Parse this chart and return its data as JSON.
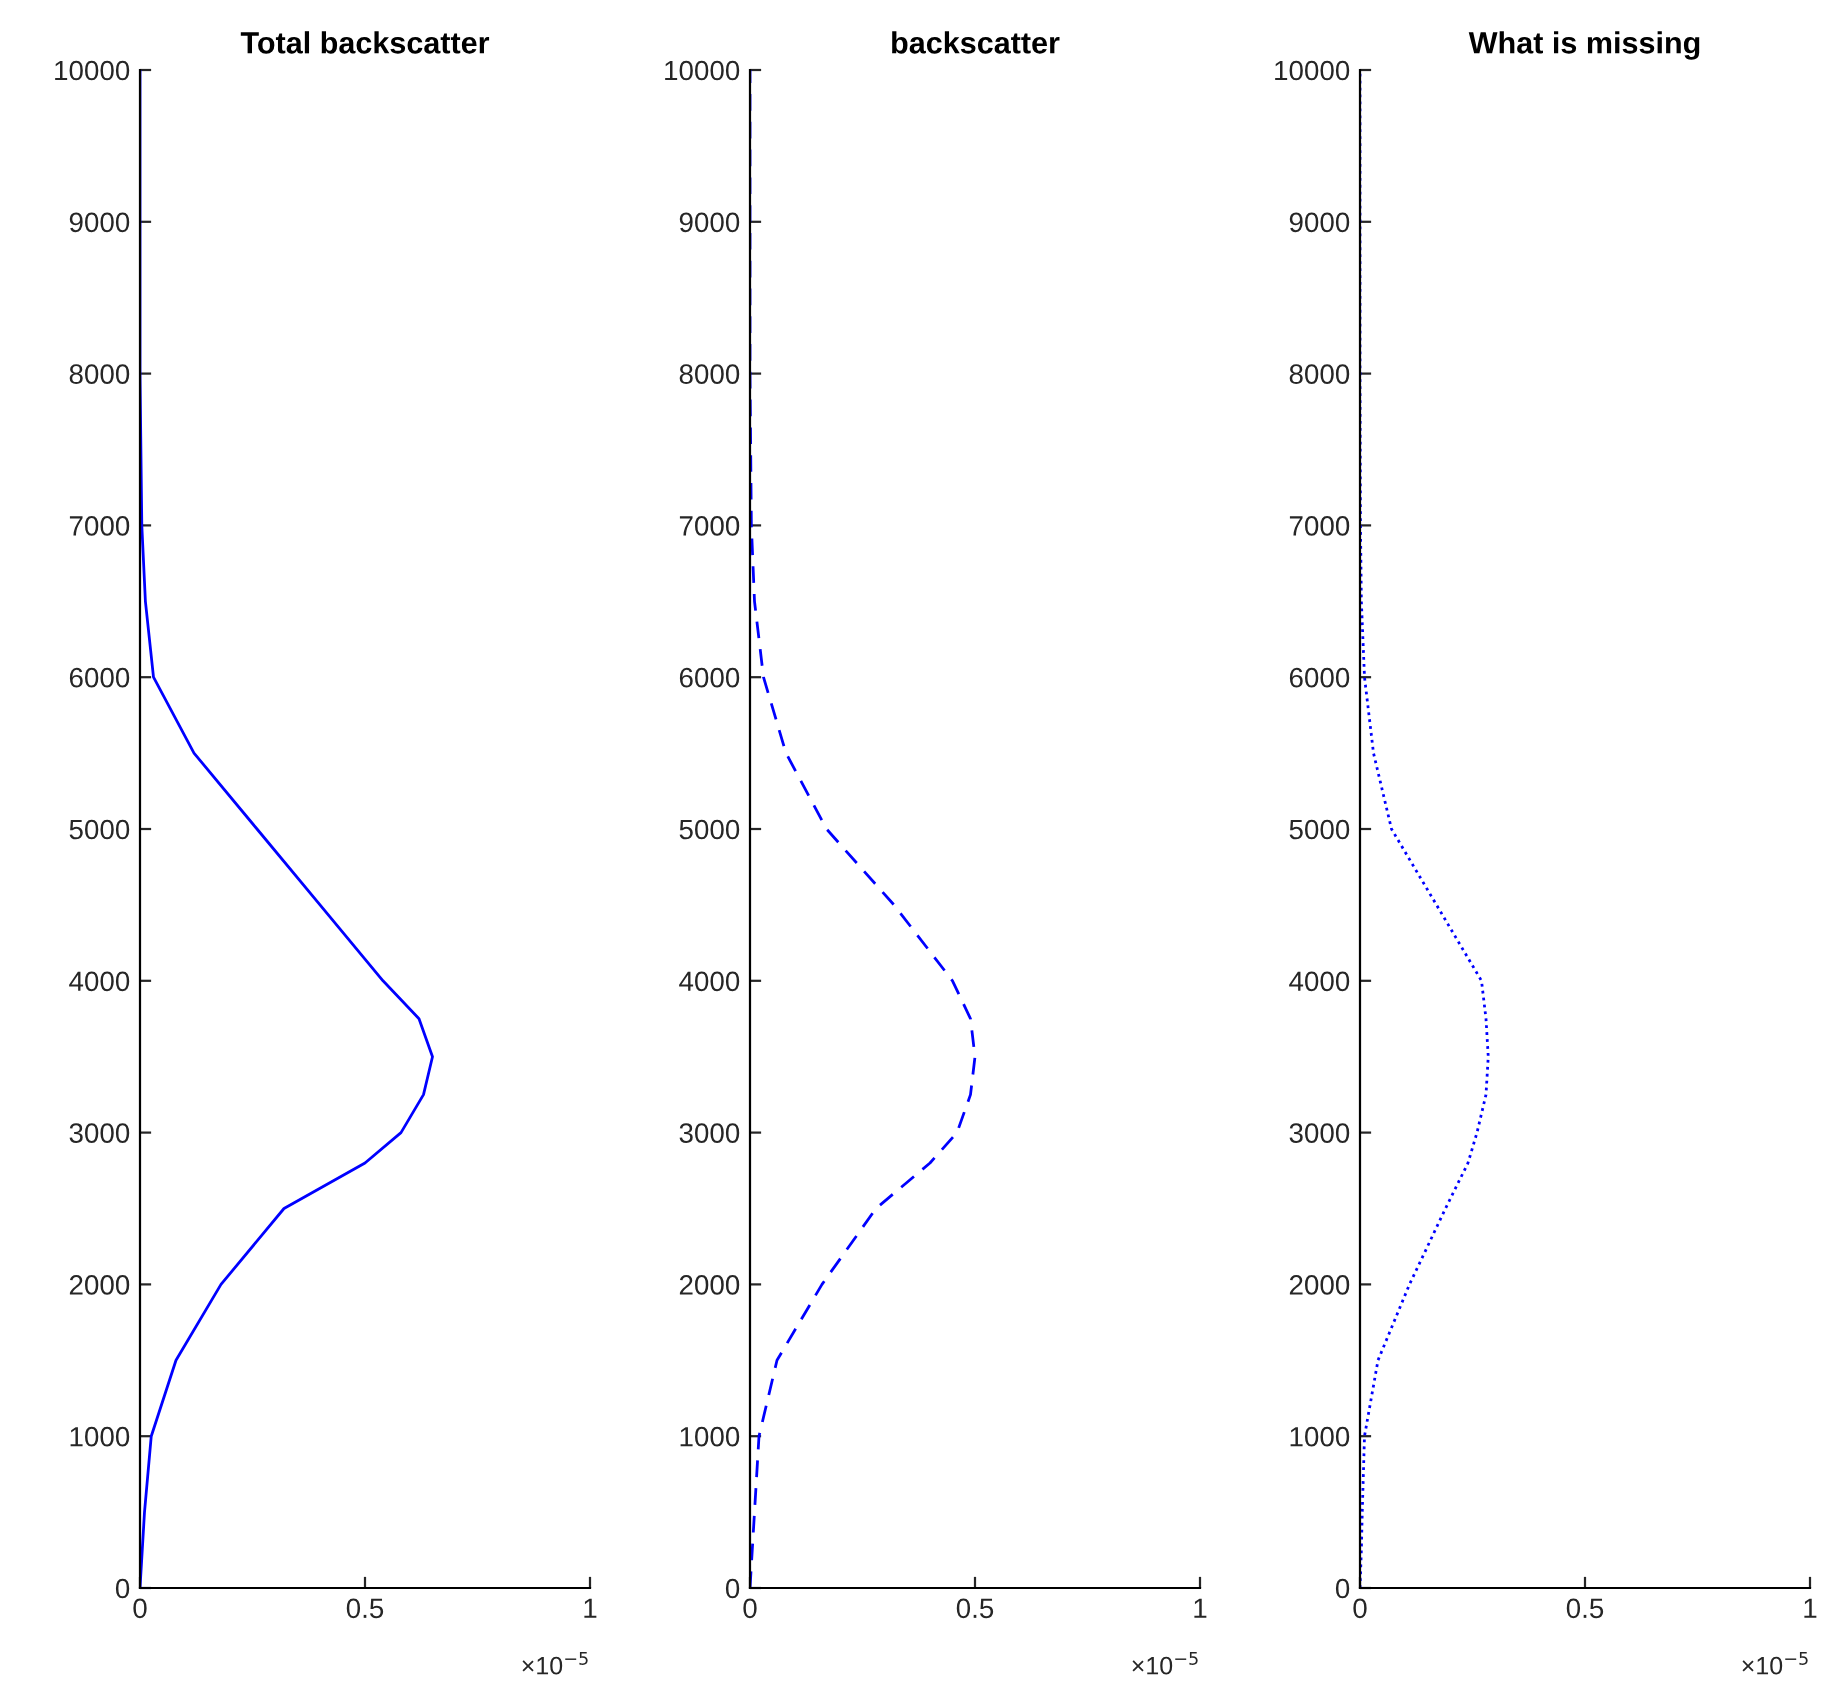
{
  "chart_data": [
    {
      "type": "line",
      "title": "Total backscatter",
      "xlim": [
        0,
        1
      ],
      "xticks": [
        0,
        0.5,
        1
      ],
      "ylim": [
        0,
        10000
      ],
      "yticks": [
        0,
        1000,
        2000,
        3000,
        4000,
        5000,
        6000,
        7000,
        8000,
        9000,
        10000
      ],
      "line_style": "solid",
      "annotations": [
        "×10$^{−5}$"
      ],
      "series": [
        {
          "color": "#0000ff",
          "x": [
            0,
            0.005,
            0.01,
            0.025,
            0.08,
            0.18,
            0.32,
            0.5,
            0.58,
            0.63,
            0.65,
            0.62,
            0.54,
            0.4,
            0.26,
            0.12,
            0.03,
            0.012,
            0.004,
            0,
            0
          ],
          "values": [
            0,
            250,
            500,
            1000,
            1500,
            2000,
            2500,
            2800,
            3000,
            3250,
            3500,
            3750,
            4000,
            4500,
            5000,
            5500,
            6000,
            6500,
            7000,
            8000,
            10000
          ]
        }
      ]
    },
    {
      "type": "line",
      "title": "backscatter",
      "xlim": [
        0,
        1
      ],
      "xticks": [
        0,
        0.5,
        1
      ],
      "ylim": [
        0,
        10000
      ],
      "yticks": [
        0,
        1000,
        2000,
        3000,
        4000,
        5000,
        6000,
        7000,
        8000,
        9000,
        10000
      ],
      "line_style": "dashed",
      "annotations": [
        "×10$^{−5}$"
      ],
      "series": [
        {
          "color": "#0000ff",
          "x": [
            0,
            0.005,
            0.01,
            0.02,
            0.06,
            0.16,
            0.28,
            0.4,
            0.46,
            0.49,
            0.5,
            0.49,
            0.45,
            0.32,
            0.17,
            0.08,
            0.03,
            0.01,
            0.003,
            0,
            0
          ],
          "values": [
            0,
            250,
            500,
            1000,
            1500,
            2000,
            2500,
            2800,
            3000,
            3250,
            3500,
            3750,
            4000,
            4500,
            5000,
            5500,
            6000,
            6500,
            7000,
            8000,
            10000
          ]
        }
      ]
    },
    {
      "type": "line",
      "title": "What is missing",
      "xlim": [
        0,
        1
      ],
      "xticks": [
        0,
        0.5,
        1
      ],
      "ylim": [
        0,
        10000
      ],
      "yticks": [
        0,
        1000,
        2000,
        3000,
        4000,
        5000,
        6000,
        7000,
        8000,
        9000,
        10000
      ],
      "line_style": "dotted",
      "annotations": [
        "×10$^{−5}$"
      ],
      "series": [
        {
          "color": "#0000ff",
          "x": [
            0,
            0.003,
            0.005,
            0.01,
            0.04,
            0.11,
            0.19,
            0.24,
            0.26,
            0.28,
            0.285,
            0.28,
            0.27,
            0.17,
            0.07,
            0.03,
            0.01,
            0.003,
            0.001,
            0,
            0
          ],
          "values": [
            0,
            250,
            500,
            1000,
            1500,
            2000,
            2500,
            2800,
            3000,
            3250,
            3500,
            3750,
            4000,
            4500,
            5000,
            5500,
            6000,
            6500,
            7000,
            8000,
            10000
          ]
        }
      ]
    }
  ]
}
